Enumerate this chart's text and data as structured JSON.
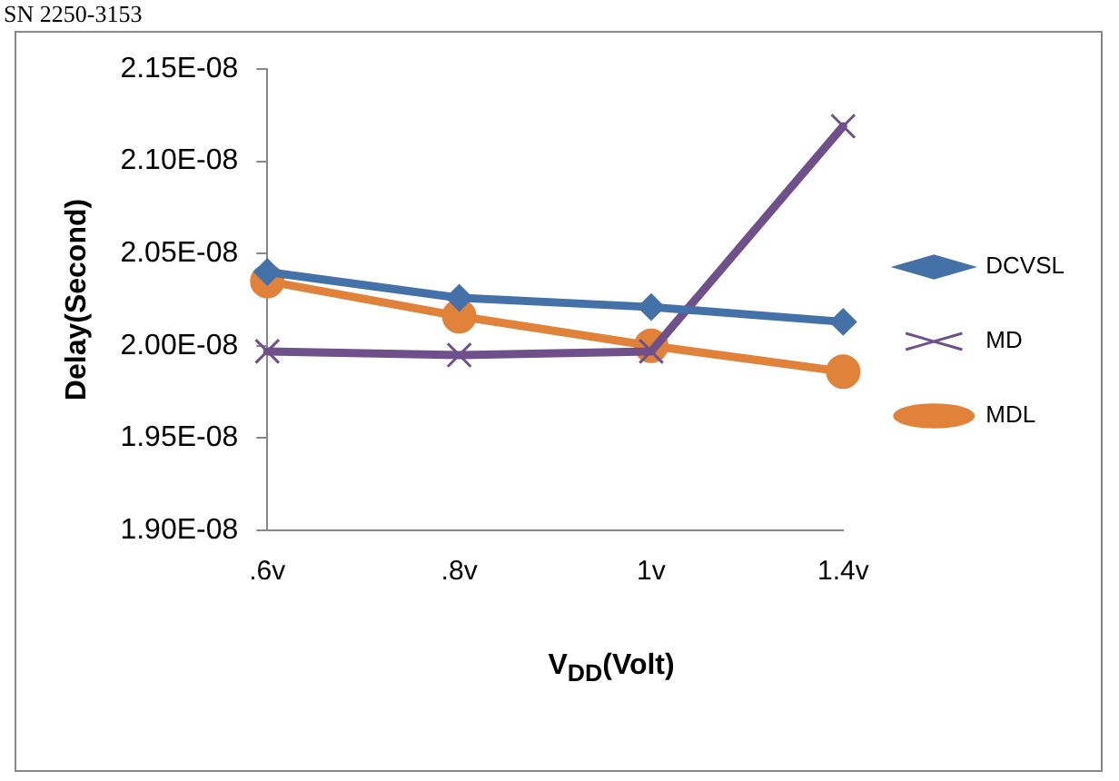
{
  "chart_data": {
    "type": "line",
    "annotations": [
      "SN 2250-3153"
    ],
    "xlabel": "V$_{DD}$(Volt)",
    "ylabel": "Delay(Second)",
    "categories": [
      ".6v",
      ".8v",
      "1v",
      "1.4v"
    ],
    "series": [
      {
        "name": "DCVSL",
        "color": "#4472a8",
        "marker": "diamond",
        "values": [
          2.04e-08,
          2.026e-08,
          2.021e-08,
          2.013e-08
        ]
      },
      {
        "name": "MD",
        "color": "#70508a",
        "marker": "cross",
        "values": [
          1.997e-08,
          1.995e-08,
          1.997e-08,
          2.119e-08
        ]
      },
      {
        "name": "MDL",
        "color": "#e0823a",
        "marker": "circle",
        "values": [
          2.035e-08,
          2.016e-08,
          2e-08,
          1.986e-08
        ]
      }
    ],
    "ylim": [
      1.9e-08,
      2.15e-08
    ],
    "yticks": [
      {
        "value": 1.9e-08,
        "label": "1.90E-08"
      },
      {
        "value": 1.95e-08,
        "label": "1.95E-08"
      },
      {
        "value": 2e-08,
        "label": "2.00E-08"
      },
      {
        "value": 2.05e-08,
        "label": "2.05E-08"
      },
      {
        "value": 2.1e-08,
        "label": "2.10E-08"
      },
      {
        "value": 2.15e-08,
        "label": "2.15E-08"
      }
    ],
    "grid": false,
    "legend": "right"
  }
}
